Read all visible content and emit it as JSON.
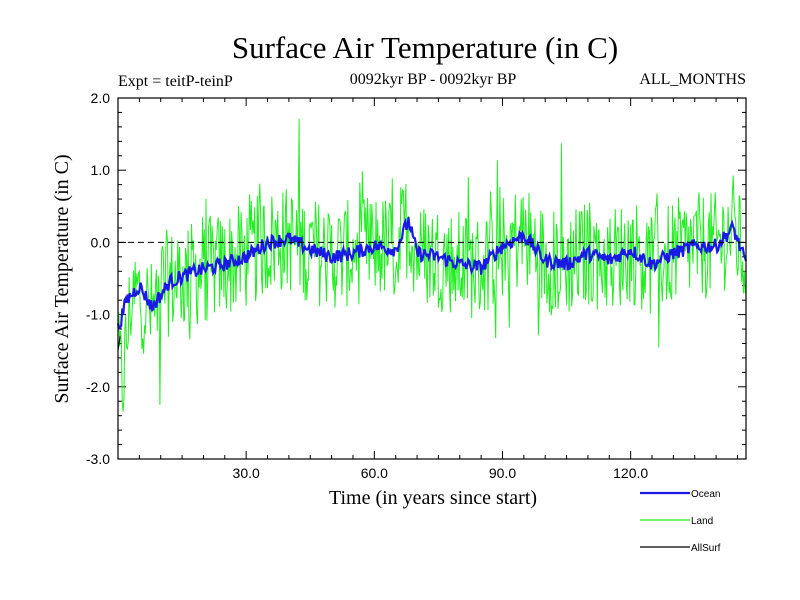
{
  "chart_data": {
    "type": "line",
    "title": "Surface Air Temperature (in C)",
    "subtitle_left": "Expt = teitP-teinP",
    "subtitle_center": "0092kyr BP - 0092kyr BP",
    "subtitle_right": "ALL_MONTHS",
    "xlabel": "Time (in years since start)",
    "ylabel": "Surface Air Temperature (in C)",
    "xlim": [
      0,
      147
    ],
    "ylim": [
      -3.0,
      2.0
    ],
    "x_ticks": [
      30,
      60,
      90,
      120
    ],
    "x_tick_labels": [
      "30.0",
      "60.0",
      "90.0",
      "120.0"
    ],
    "y_ticks": [
      -3.0,
      -2.0,
      -1.0,
      0.0,
      1.0,
      2.0
    ],
    "y_tick_labels": [
      "-3.0",
      "-2.0",
      "-1.0",
      "0.0",
      "1.0",
      "2.0"
    ],
    "reference_line": {
      "y": 0.0,
      "style": "dashed"
    },
    "legend_position": "bottom-right",
    "series": [
      {
        "name": "Ocean",
        "color": "#1a1ae6",
        "x": [
          0,
          2,
          5,
          8,
          12,
          18,
          25,
          30,
          35,
          40,
          45,
          50,
          55,
          60,
          65,
          68,
          70,
          75,
          80,
          85,
          90,
          95,
          100,
          105,
          110,
          115,
          120,
          125,
          130,
          135,
          140,
          144,
          147
        ],
        "values": [
          -1.2,
          -0.8,
          -0.6,
          -0.9,
          -0.55,
          -0.4,
          -0.3,
          -0.2,
          0.0,
          0.05,
          -0.1,
          -0.2,
          -0.15,
          -0.05,
          -0.1,
          0.3,
          -0.15,
          -0.2,
          -0.3,
          -0.35,
          -0.05,
          0.1,
          -0.25,
          -0.3,
          -0.15,
          -0.25,
          -0.1,
          -0.3,
          -0.15,
          -0.05,
          -0.05,
          0.2,
          -0.3
        ]
      },
      {
        "name": "Land",
        "color": "#22ee22",
        "x": [
          0,
          1,
          3,
          5,
          8,
          10,
          15,
          20,
          25,
          30,
          35,
          40,
          45,
          50,
          55,
          60,
          65,
          68,
          70,
          75,
          80,
          85,
          90,
          95,
          100,
          105,
          110,
          115,
          120,
          125,
          130,
          135,
          140,
          144,
          147
        ],
        "values": [
          -1.5,
          -2.0,
          -0.8,
          -0.7,
          -1.0,
          -0.6,
          -0.5,
          -0.4,
          -0.3,
          -0.2,
          0.0,
          0.05,
          -0.1,
          -0.2,
          -0.15,
          -0.05,
          -0.1,
          0.3,
          -0.15,
          -0.2,
          -0.3,
          -0.35,
          -0.05,
          0.1,
          -0.25,
          -0.3,
          -0.15,
          -0.25,
          -0.1,
          -0.3,
          -0.15,
          -0.05,
          -0.05,
          0.2,
          -0.3
        ]
      },
      {
        "name": "AllSurf",
        "color": "#000000",
        "x": [
          0,
          0.5
        ],
        "values": [
          -1.5,
          -1.3
        ]
      }
    ]
  }
}
